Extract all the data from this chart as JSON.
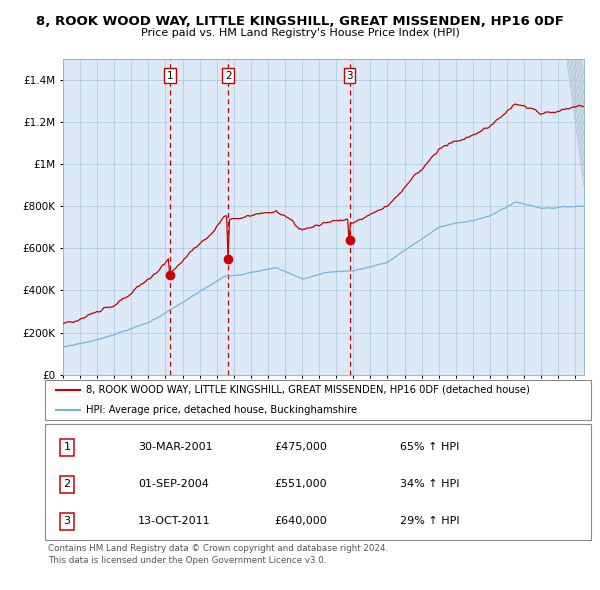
{
  "title": "8, ROOK WOOD WAY, LITTLE KINGSHILL, GREAT MISSENDEN, HP16 0DF",
  "subtitle": "Price paid vs. HM Land Registry's House Price Index (HPI)",
  "legend_line1": "8, ROOK WOOD WAY, LITTLE KINGSHILL, GREAT MISSENDEN, HP16 0DF (detached house)",
  "legend_line2": "HPI: Average price, detached house, Buckinghamshire",
  "footer1": "Contains HM Land Registry data © Crown copyright and database right 2024.",
  "footer2": "This data is licensed under the Open Government Licence v3.0.",
  "transactions": [
    {
      "num": 1,
      "date": "30-MAR-2001",
      "price": 475000,
      "hpi_pct": "65% ↑ HPI",
      "x_year": 2001.25
    },
    {
      "num": 2,
      "date": "01-SEP-2004",
      "price": 551000,
      "hpi_pct": "34% ↑ HPI",
      "x_year": 2004.67
    },
    {
      "num": 3,
      "date": "13-OCT-2011",
      "price": 640000,
      "hpi_pct": "29% ↑ HPI",
      "x_year": 2011.78
    }
  ],
  "hpi_color": "#7ab4d8",
  "price_color": "#cc0000",
  "bg_color": "#dce9f7",
  "grid_color": "#aec8de",
  "vline_color": "#cc0000",
  "marker_color": "#cc0000",
  "ylim": [
    0,
    1500000
  ],
  "xlim_start": 1995.0,
  "xlim_end": 2025.5
}
